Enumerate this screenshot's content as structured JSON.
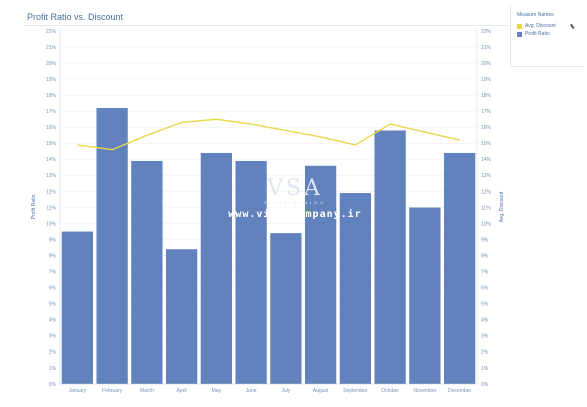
{
  "title": "Profit Ratio vs. Discount",
  "legend": {
    "title": "Measure Names",
    "items": [
      {
        "label": "Avg. Discount",
        "color": "#e8d84a"
      },
      {
        "label": "Profit Ratio",
        "color": "#6282bd"
      }
    ]
  },
  "watermark": {
    "logo": "VSA",
    "subtitle": "VISTA MINING",
    "url": "www.vistacompany.ir"
  },
  "chart_data": {
    "type": "bar",
    "categories": [
      "January",
      "February",
      "March",
      "April",
      "May",
      "June",
      "July",
      "August",
      "September",
      "October",
      "November",
      "December"
    ],
    "series": [
      {
        "name": "Profit Ratio",
        "kind": "bar",
        "color": "#6282bd",
        "values": [
          9.5,
          17.2,
          13.9,
          8.4,
          14.4,
          13.9,
          9.4,
          13.6,
          11.9,
          15.8,
          11.0,
          14.4
        ]
      },
      {
        "name": "Avg. Discount",
        "kind": "line",
        "color": "#e8d84a",
        "values": [
          14.9,
          14.6,
          15.5,
          16.3,
          16.5,
          16.2,
          15.8,
          15.4,
          14.9,
          16.2,
          15.7,
          15.2
        ]
      }
    ],
    "ylabel": "Profit Ratio",
    "y2label": "Avg. Discount",
    "ylim": [
      0,
      22
    ],
    "y2lim": [
      0,
      22
    ],
    "tick_step": 1,
    "tick_suffix": "%",
    "grid": true,
    "legend_position": "top-right"
  }
}
